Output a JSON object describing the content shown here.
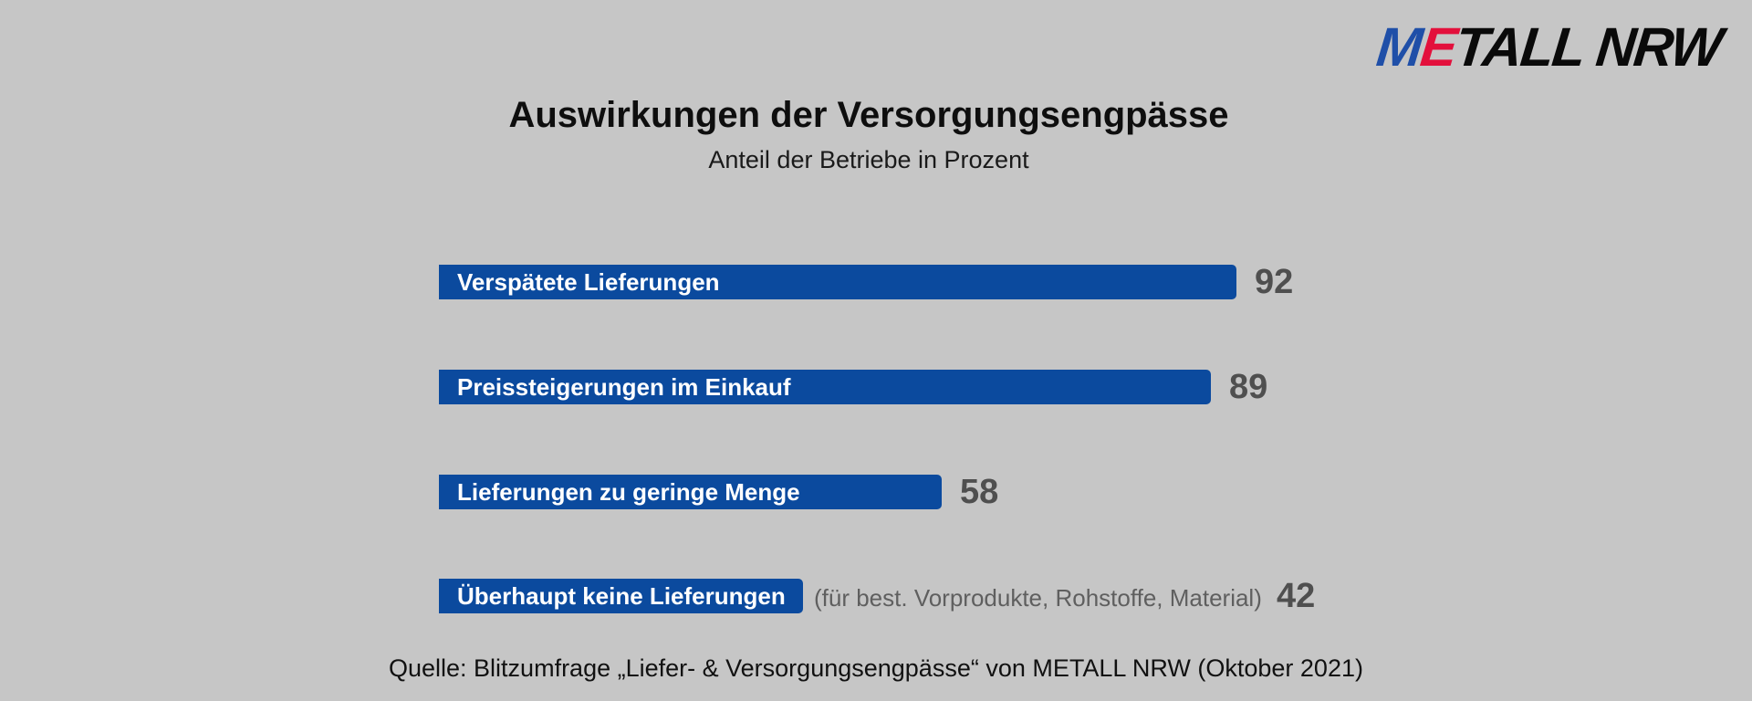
{
  "logo": {
    "m": "M",
    "e": "E",
    "rest": "TALL NRW"
  },
  "chart_data": {
    "type": "bar",
    "orientation": "horizontal",
    "title": "Auswirkungen der Versorgungsengpässe",
    "subtitle": "Anteil der Betriebe in Prozent",
    "categories": [
      "Verspätete Lieferungen",
      "Preissteigerungen im Einkauf",
      "Lieferungen zu geringe Menge",
      "Überhaupt keine Lieferungen"
    ],
    "values": [
      92,
      89,
      58,
      42
    ],
    "value_labels": [
      "92",
      "89",
      "58",
      "42"
    ],
    "annotations": [
      "",
      "",
      "",
      "(für best. Vorprodukte, Rohstoffe, Material)"
    ],
    "bar_color": "#0b4a9e",
    "grid": false
  },
  "source": "Quelle: Blitzumfrage „Liefer- & Versorgungsengpässe“ von METALL NRW (Oktober 2021)"
}
